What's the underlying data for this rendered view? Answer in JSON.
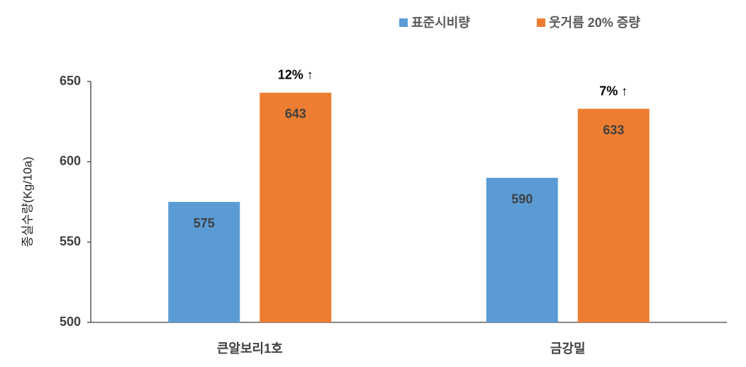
{
  "chart_data": {
    "type": "bar",
    "categories": [
      "큰알보리1호",
      "금강밀"
    ],
    "series": [
      {
        "name": "표준시비량",
        "color": "#5b9bd5",
        "values": [
          575,
          590
        ]
      },
      {
        "name": "웃거름 20% 증량",
        "color": "#ed7d31",
        "values": [
          643,
          633
        ]
      }
    ],
    "annotations": [
      "12% ↑",
      "7% ↑"
    ],
    "y_label": "종실수량(Kg/10a)",
    "ylim": [
      500,
      650
    ],
    "yticks": [
      500,
      550,
      600,
      650
    ],
    "legend": "top-right",
    "grid": false
  }
}
